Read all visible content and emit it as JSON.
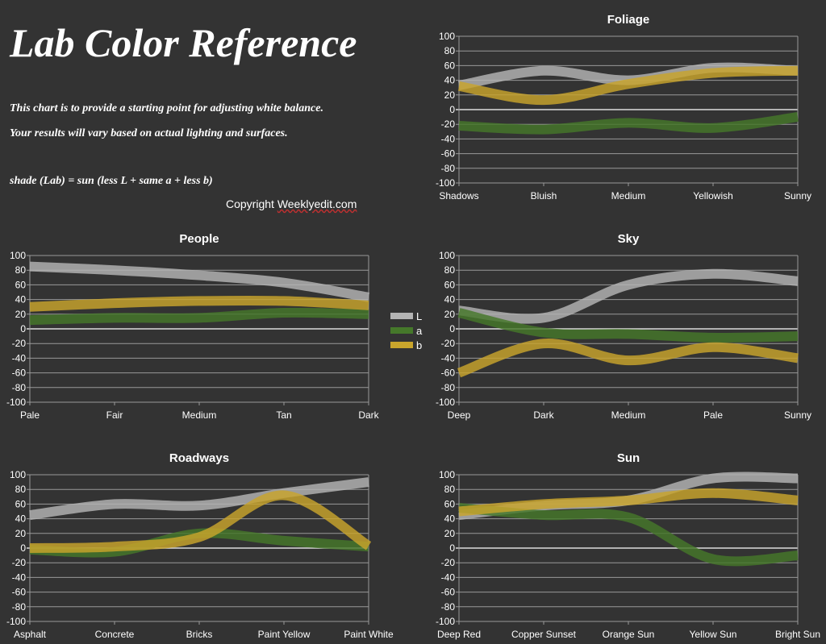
{
  "header": {
    "title": "Lab Color Reference",
    "line1": "This chart is to provide a starting point for adjusting white balance.",
    "line2": "Your results will vary based on actual lighting and surfaces.",
    "formula": "shade (Lab) = sun (less L + same a + less b)",
    "copyright_prefix": "Copyright ",
    "copyright_site": "Weeklyedit.com"
  },
  "legend": [
    {
      "name": "L",
      "color": "#b4b4b4"
    },
    {
      "name": "a",
      "color": "#45782a"
    },
    {
      "name": "b",
      "color": "#c9a52c"
    }
  ],
  "chart_data": [
    {
      "type": "line",
      "title": "Foliage",
      "categories": [
        "Shadows",
        "Bluish",
        "Medium",
        "Yellowish",
        "Sunny"
      ],
      "ylim": [
        -100,
        100
      ],
      "yticks": [
        100,
        80,
        60,
        40,
        20,
        0,
        -20,
        -40,
        -60,
        -80,
        -100
      ],
      "grid": true,
      "series": [
        {
          "name": "L",
          "values": [
            33,
            53,
            40,
            57,
            53
          ]
        },
        {
          "name": "a",
          "values": [
            -22,
            -27,
            -18,
            -25,
            -10
          ]
        },
        {
          "name": "b",
          "values": [
            32,
            13,
            35,
            50,
            53
          ]
        }
      ]
    },
    {
      "type": "line",
      "title": "People",
      "categories": [
        "Pale",
        "Fair",
        "Medium",
        "Tan",
        "Dark"
      ],
      "ylim": [
        -100,
        100
      ],
      "yticks": [
        100,
        80,
        60,
        40,
        20,
        0,
        -20,
        -40,
        -60,
        -80,
        -100
      ],
      "grid": true,
      "series": [
        {
          "name": "L",
          "values": [
            85,
            80,
            73,
            63,
            43
          ]
        },
        {
          "name": "a",
          "values": [
            12,
            15,
            15,
            22,
            20
          ]
        },
        {
          "name": "b",
          "values": [
            30,
            35,
            38,
            38,
            32
          ]
        }
      ]
    },
    {
      "type": "line",
      "title": "Sky",
      "categories": [
        "Deep",
        "Dark",
        "Medium",
        "Pale",
        "Sunny"
      ],
      "ylim": [
        -100,
        100
      ],
      "yticks": [
        100,
        80,
        60,
        40,
        20,
        0,
        -20,
        -40,
        -60,
        -80,
        -100
      ],
      "grid": true,
      "series": [
        {
          "name": "L",
          "values": [
            25,
            15,
            60,
            75,
            65
          ]
        },
        {
          "name": "a",
          "values": [
            22,
            -5,
            -7,
            -12,
            -10
          ]
        },
        {
          "name": "b",
          "values": [
            -60,
            -20,
            -43,
            -25,
            -40
          ]
        }
      ]
    },
    {
      "type": "line",
      "title": "Roadways",
      "categories": [
        "Asphalt",
        "Concrete",
        "Bricks",
        "Paint Yellow",
        "Paint White"
      ],
      "ylim": [
        -100,
        100
      ],
      "yticks": [
        100,
        80,
        60,
        40,
        20,
        0,
        -20,
        -40,
        -60,
        -80,
        -100
      ],
      "grid": true,
      "series": [
        {
          "name": "L",
          "values": [
            45,
            60,
            58,
            75,
            90
          ]
        },
        {
          "name": "a",
          "values": [
            -2,
            -5,
            20,
            10,
            2
          ]
        },
        {
          "name": "b",
          "values": [
            0,
            2,
            15,
            72,
            3
          ]
        }
      ]
    },
    {
      "type": "line",
      "title": "Sun",
      "categories": [
        "Deep Red",
        "Copper Sunset",
        "Orange Sun",
        "Yellow Sun",
        "Bright Sun"
      ],
      "ylim": [
        -100,
        100
      ],
      "yticks": [
        100,
        80,
        60,
        40,
        20,
        0,
        -20,
        -40,
        -60,
        -80,
        -100
      ],
      "grid": true,
      "series": [
        {
          "name": "L",
          "values": [
            45,
            58,
            65,
            95,
            95
          ]
        },
        {
          "name": "a",
          "values": [
            55,
            45,
            42,
            -15,
            -10
          ]
        },
        {
          "name": "b",
          "values": [
            50,
            60,
            65,
            75,
            65
          ]
        }
      ]
    }
  ]
}
